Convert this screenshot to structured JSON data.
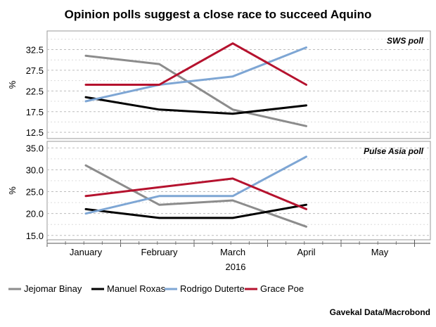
{
  "chart_data": {
    "type": "line",
    "title": "Opinion polls suggest a close race to succeed Aquino",
    "source": "Gavekal Data/Macrobond",
    "xlabel": "2016",
    "categories": [
      "January",
      "February",
      "March",
      "April",
      "May"
    ],
    "legend_position": "bottom",
    "colors": {
      "Jejomar Binay": "#8c8c8c",
      "Manuel Roxas": "#000000",
      "Rodrigo Duterte": "#7ea6d4",
      "Grace Poe": "#b5122e"
    },
    "panels": [
      {
        "title": "SWS poll",
        "ylabel": "%",
        "ylim": [
          11,
          37
        ],
        "yticks": [
          "12.5",
          "17.5",
          "22.5",
          "27.5",
          "32.5"
        ],
        "ytick_values": [
          12.5,
          17.5,
          22.5,
          27.5,
          32.5
        ],
        "series": [
          {
            "name": "Jejomar Binay",
            "values": [
              31,
              29,
              18,
              14
            ]
          },
          {
            "name": "Manuel Roxas",
            "values": [
              21,
              18,
              17,
              19
            ]
          },
          {
            "name": "Rodrigo Duterte",
            "values": [
              20,
              24,
              26,
              33
            ]
          },
          {
            "name": "Grace Poe",
            "values": [
              24,
              24,
              34,
              24
            ]
          }
        ]
      },
      {
        "title": "Pulse Asia poll",
        "ylabel": "%",
        "ylim": [
          14,
          36.5
        ],
        "yticks": [
          "15.0",
          "20.0",
          "25.0",
          "30.0",
          "35.0"
        ],
        "ytick_values": [
          15,
          20,
          25,
          30,
          35
        ],
        "series": [
          {
            "name": "Jejomar Binay",
            "values": [
              31,
              22,
              23,
              17
            ]
          },
          {
            "name": "Manuel Roxas",
            "values": [
              21,
              19,
              19,
              22
            ]
          },
          {
            "name": "Rodrigo Duterte",
            "values": [
              20,
              24,
              24,
              33
            ]
          },
          {
            "name": "Grace Poe",
            "values": [
              24,
              26,
              28,
              21
            ]
          }
        ]
      }
    ]
  }
}
